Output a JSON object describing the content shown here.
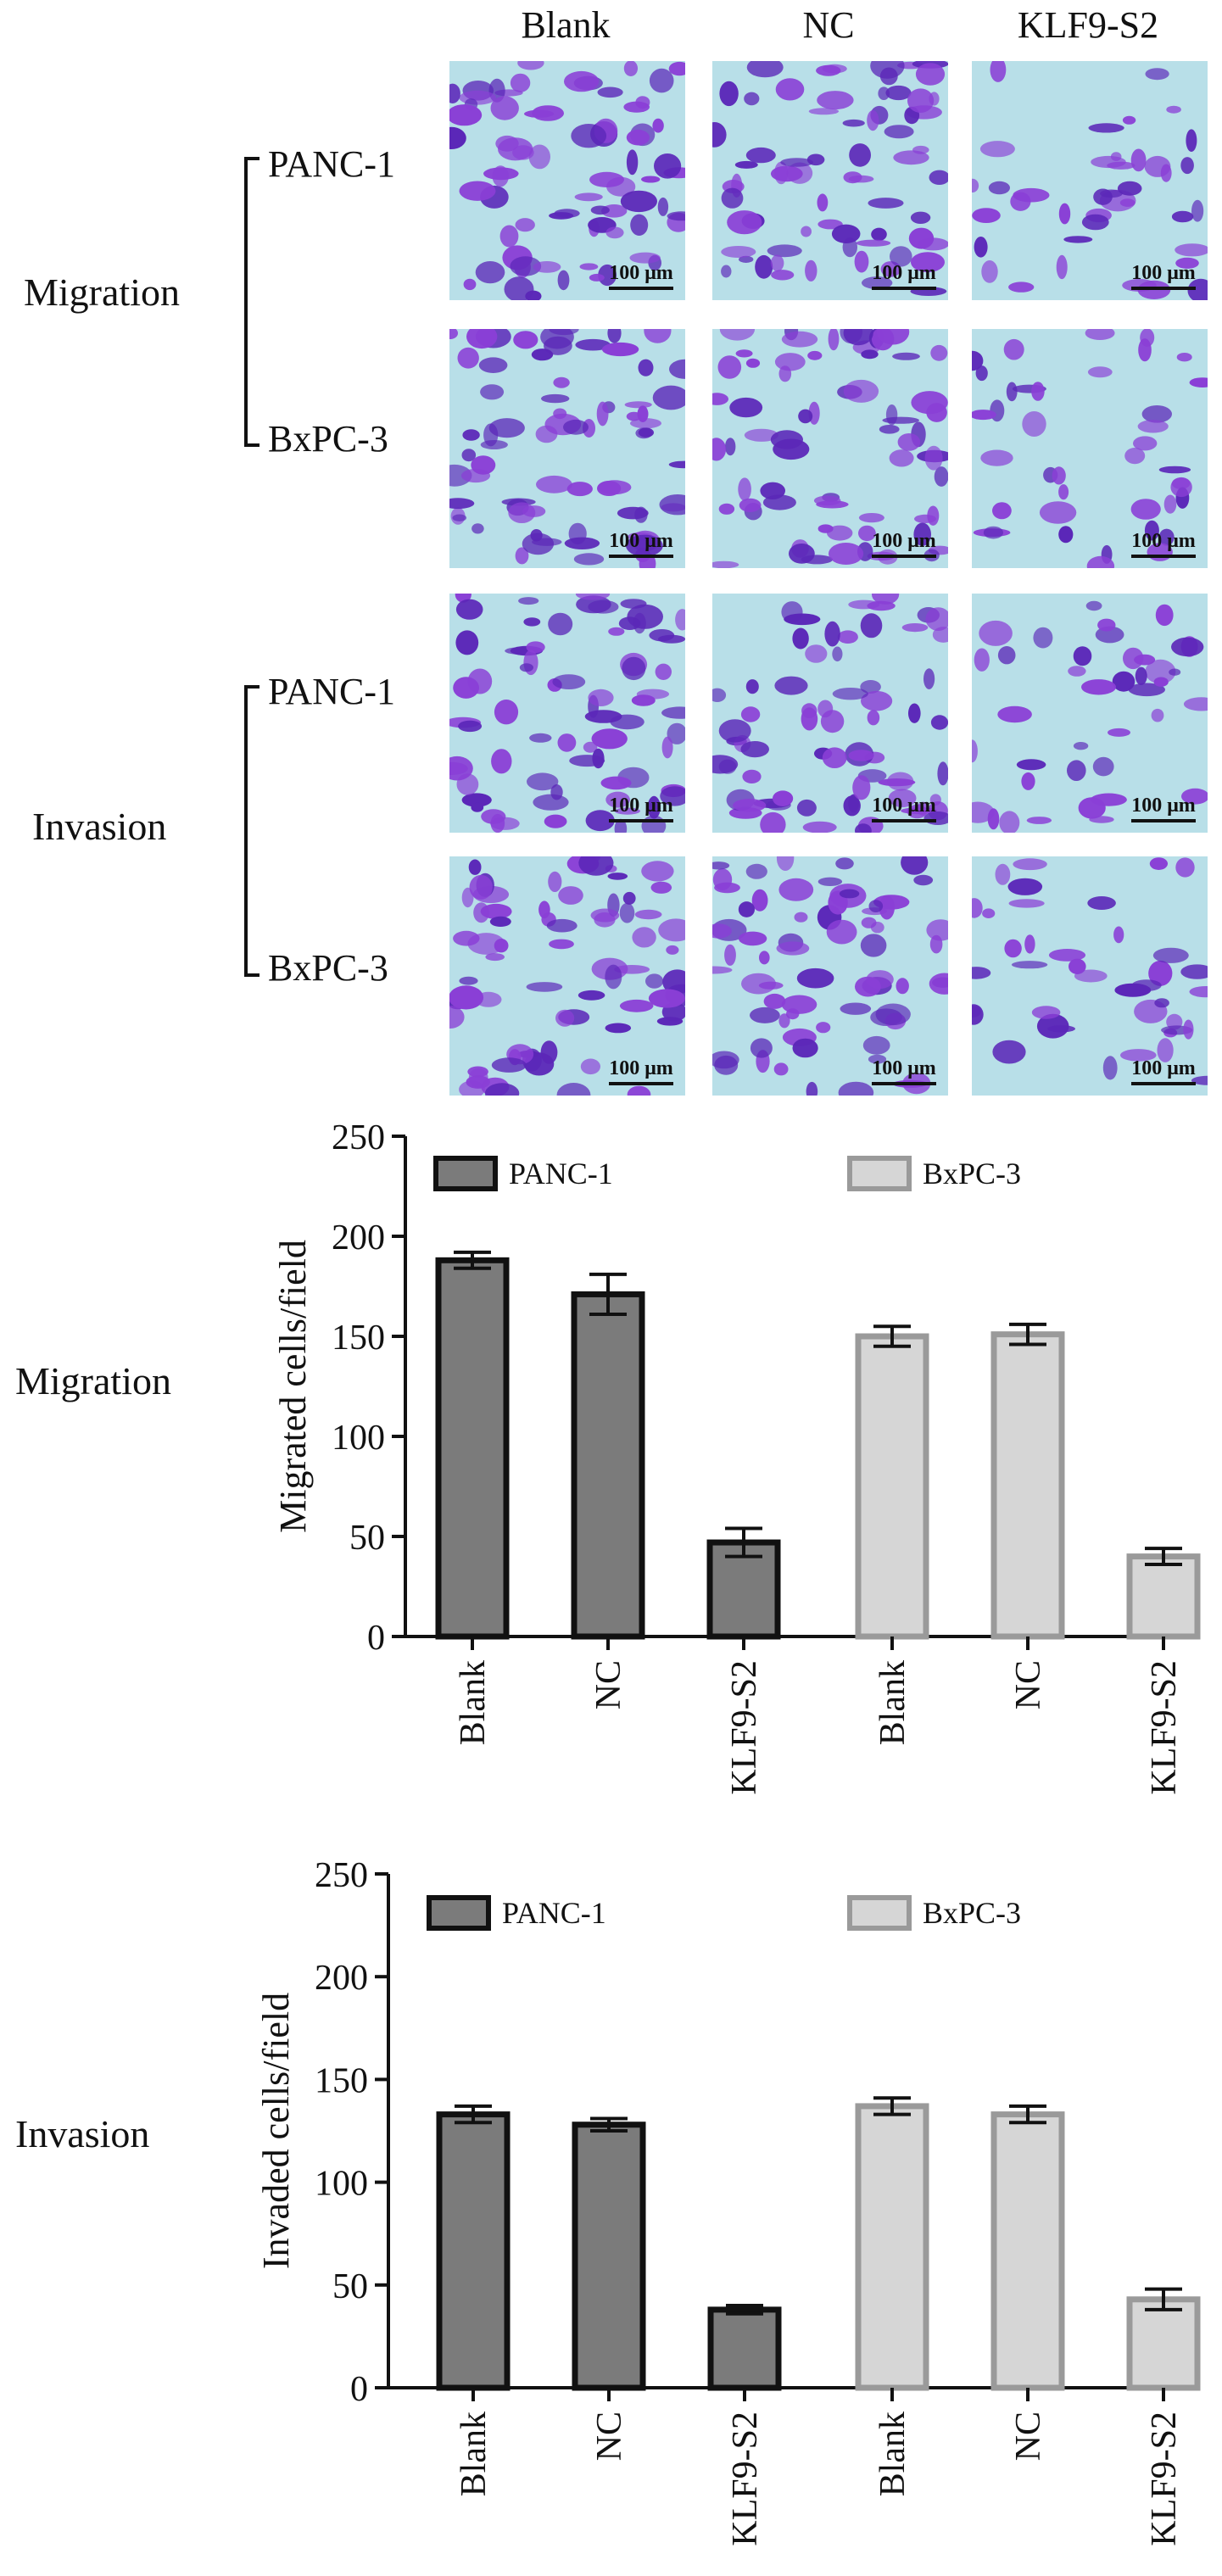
{
  "micrographs": {
    "columns": [
      "Blank",
      "NC",
      "KLF9-S2"
    ],
    "groups": [
      {
        "label": "Migration",
        "rows": [
          "PANC-1",
          "BxPC-3"
        ]
      },
      {
        "label": "Invasion",
        "rows": [
          "PANC-1",
          "BxPC-3"
        ]
      }
    ],
    "scale_bar": "100 μm",
    "stain_colors": {
      "background": "#b8dfe8",
      "cells": "#8a3fd6",
      "dark_cells": "#5b27b8"
    }
  },
  "panel_labels": [
    "Migration",
    "Invasion"
  ],
  "colors": {
    "panc1_fill": "#7b7b7b",
    "panc1_stroke": "#111111",
    "bxpc3_fill": "#d6d6d6",
    "bxpc3_stroke": "#9a9a9a"
  },
  "chart_data": [
    {
      "type": "bar",
      "ylabel": "Migrated cells/field",
      "ylim": [
        0,
        250
      ],
      "yticks": [
        0,
        50,
        100,
        150,
        200,
        250
      ],
      "categories": [
        "Blank",
        "NC",
        "KLF9-S2"
      ],
      "series": [
        {
          "name": "PANC-1",
          "values": [
            188,
            171,
            47
          ],
          "errors": [
            4,
            10,
            7
          ]
        },
        {
          "name": "BxPC-3",
          "values": [
            150,
            151,
            40
          ],
          "errors": [
            5,
            5,
            4
          ]
        }
      ],
      "legend": "top"
    },
    {
      "type": "bar",
      "ylabel": "Invaded cells/field",
      "ylim": [
        0,
        250
      ],
      "yticks": [
        0,
        50,
        100,
        150,
        200,
        250
      ],
      "categories": [
        "Blank",
        "NC",
        "KLF9-S2"
      ],
      "series": [
        {
          "name": "PANC-1",
          "values": [
            133,
            128,
            38
          ],
          "errors": [
            4,
            3,
            2
          ]
        },
        {
          "name": "BxPC-3",
          "values": [
            137,
            133,
            43
          ],
          "errors": [
            4,
            4,
            5
          ]
        }
      ],
      "legend": "top"
    }
  ]
}
